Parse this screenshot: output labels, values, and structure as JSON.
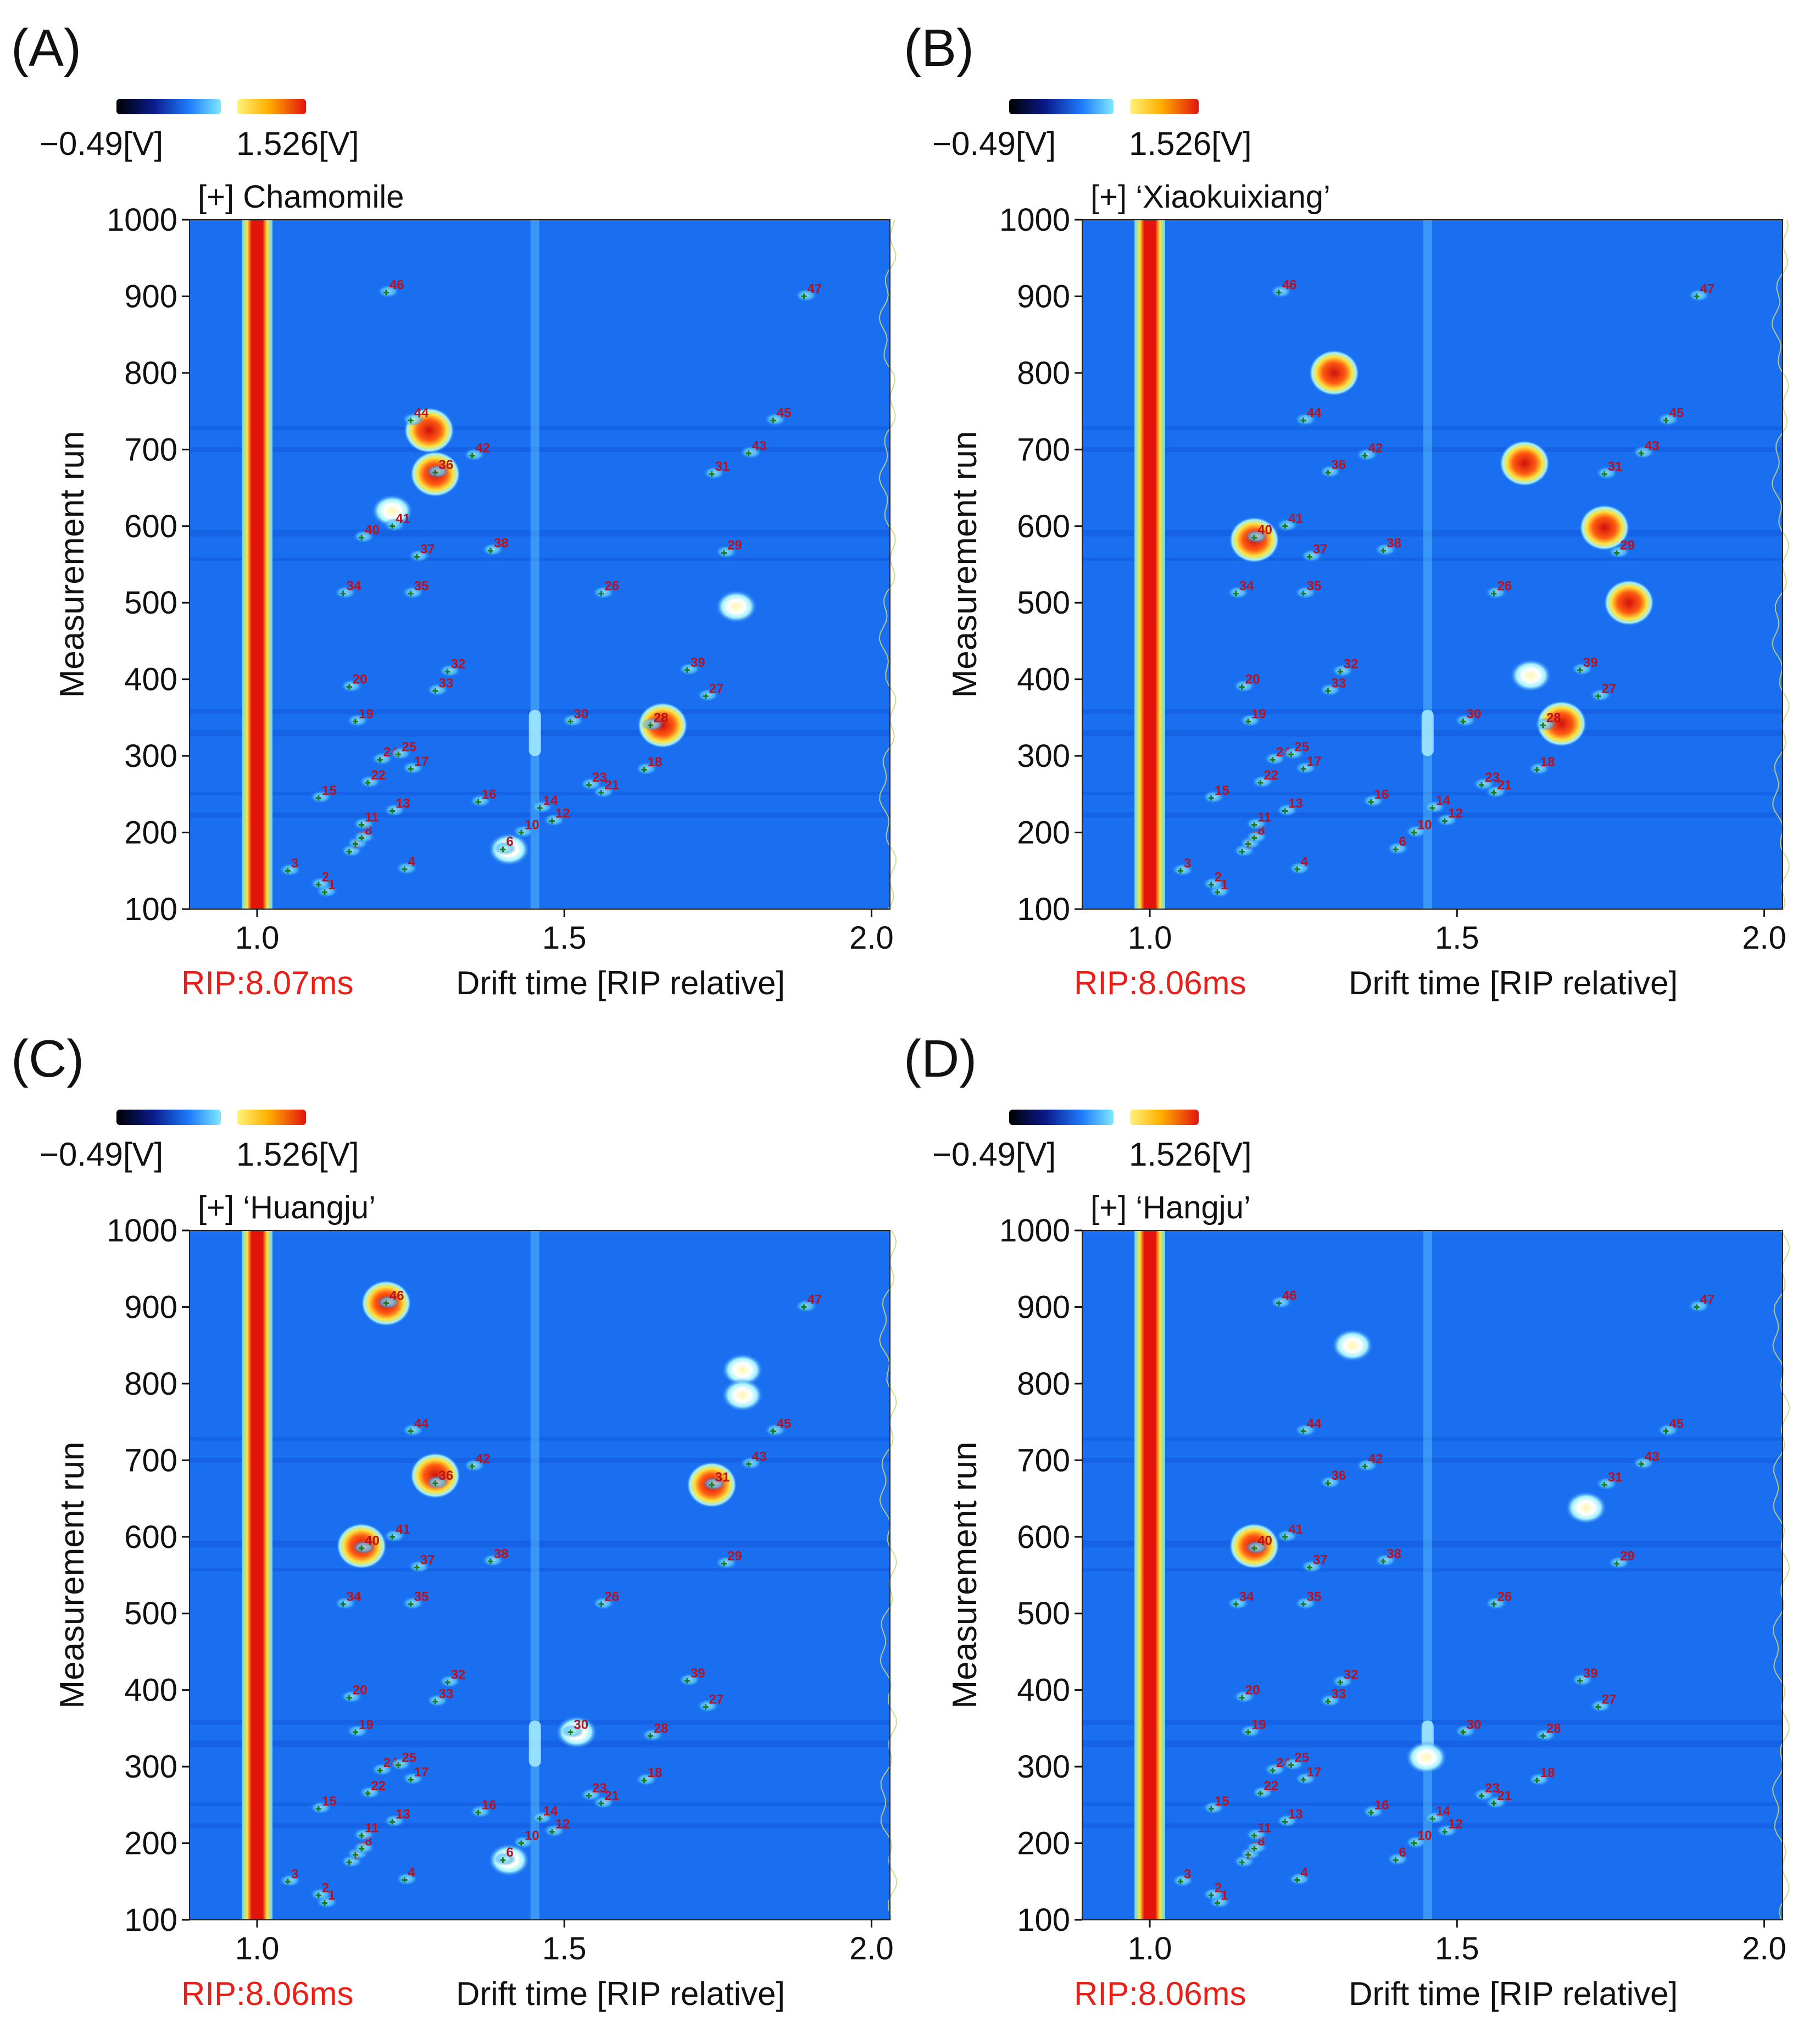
{
  "figure": {
    "colorbar": {
      "min_label": "−0.49[V]",
      "max_label": "1.526[V]"
    },
    "axis": {
      "ylabel": "Measurement run",
      "xlabel": "Drift time [RIP relative]",
      "xticks": [
        "1.0",
        "1.5",
        "2.0"
      ],
      "yticks": [
        "100",
        "200",
        "300",
        "400",
        "500",
        "600",
        "700",
        "800",
        "900",
        "1000"
      ]
    }
  },
  "colors": {
    "background": "#1a6ff0",
    "rip_line": "#e3140c",
    "rip_label": "#e8201a",
    "marker": "#1b7a1b",
    "peak_label": "#b8121e"
  },
  "chart_data": [
    {
      "type": "heatmap",
      "panel_label": "(A)",
      "title": "[+] Chamomile",
      "rip": "RIP:8.07ms",
      "xlabel": "Drift time [RIP relative]",
      "ylabel": "Measurement run",
      "xlim": [
        0.89,
        2.03
      ],
      "ylim": [
        100,
        1000
      ],
      "hotspots": [
        {
          "x": 1.28,
          "y": 725,
          "intensity": "high"
        },
        {
          "x": 1.29,
          "y": 668,
          "intensity": "high"
        },
        {
          "x": 1.22,
          "y": 620,
          "intensity": "medium"
        },
        {
          "x": 1.66,
          "y": 340,
          "intensity": "high"
        },
        {
          "x": 1.41,
          "y": 178,
          "intensity": "medium"
        },
        {
          "x": 1.78,
          "y": 495,
          "intensity": "medium"
        }
      ],
      "peaks": [
        {
          "id": "1",
          "x": 1.11,
          "y": 122
        },
        {
          "id": "2",
          "x": 1.1,
          "y": 132
        },
        {
          "id": "3",
          "x": 1.05,
          "y": 150
        },
        {
          "id": "4",
          "x": 1.24,
          "y": 152
        },
        {
          "id": "5",
          "x": 1.15,
          "y": 175
        },
        {
          "id": "6",
          "x": 1.4,
          "y": 178
        },
        {
          "id": "7",
          "x": 1.16,
          "y": 185
        },
        {
          "id": "8",
          "x": 1.17,
          "y": 193
        },
        {
          "id": "10",
          "x": 1.43,
          "y": 200
        },
        {
          "id": "11",
          "x": 1.17,
          "y": 210
        },
        {
          "id": "12",
          "x": 1.48,
          "y": 215
        },
        {
          "id": "13",
          "x": 1.22,
          "y": 228
        },
        {
          "id": "14",
          "x": 1.46,
          "y": 232
        },
        {
          "id": "15",
          "x": 1.1,
          "y": 245
        },
        {
          "id": "16",
          "x": 1.36,
          "y": 240
        },
        {
          "id": "18",
          "x": 1.63,
          "y": 282
        },
        {
          "id": "19",
          "x": 1.16,
          "y": 345
        },
        {
          "id": "20",
          "x": 1.15,
          "y": 390
        },
        {
          "id": "21",
          "x": 1.56,
          "y": 252
        },
        {
          "id": "22",
          "x": 1.18,
          "y": 265
        },
        {
          "id": "23",
          "x": 1.54,
          "y": 262
        },
        {
          "id": "24",
          "x": 1.2,
          "y": 295
        },
        {
          "id": "25",
          "x": 1.23,
          "y": 302
        },
        {
          "id": "17",
          "x": 1.25,
          "y": 283
        },
        {
          "id": "26",
          "x": 1.56,
          "y": 512
        },
        {
          "id": "27",
          "x": 1.73,
          "y": 378
        },
        {
          "id": "28",
          "x": 1.64,
          "y": 340
        },
        {
          "id": "30",
          "x": 1.51,
          "y": 345
        },
        {
          "id": "31",
          "x": 1.74,
          "y": 668
        },
        {
          "id": "32",
          "x": 1.31,
          "y": 410
        },
        {
          "id": "33",
          "x": 1.29,
          "y": 385
        },
        {
          "id": "34",
          "x": 1.14,
          "y": 512
        },
        {
          "id": "35",
          "x": 1.25,
          "y": 512
        },
        {
          "id": "36",
          "x": 1.29,
          "y": 670
        },
        {
          "id": "37",
          "x": 1.26,
          "y": 560
        },
        {
          "id": "38",
          "x": 1.38,
          "y": 568
        },
        {
          "id": "39",
          "x": 1.7,
          "y": 412
        },
        {
          "id": "40",
          "x": 1.17,
          "y": 585
        },
        {
          "id": "41",
          "x": 1.22,
          "y": 600
        },
        {
          "id": "42",
          "x": 1.35,
          "y": 692
        },
        {
          "id": "43",
          "x": 1.8,
          "y": 695
        },
        {
          "id": "44",
          "x": 1.25,
          "y": 738
        },
        {
          "id": "45",
          "x": 1.84,
          "y": 738
        },
        {
          "id": "46",
          "x": 1.21,
          "y": 905
        },
        {
          "id": "47",
          "x": 1.89,
          "y": 900
        },
        {
          "id": "29",
          "x": 1.76,
          "y": 565
        }
      ]
    },
    {
      "type": "heatmap",
      "panel_label": "(B)",
      "title": "[+] ‘Xiaokuixiang’",
      "rip": "RIP:8.06ms",
      "xlabel": "Drift time [RIP relative]",
      "ylabel": "Measurement run",
      "xlim": [
        0.89,
        2.03
      ],
      "ylim": [
        100,
        1000
      ],
      "hotspots": [
        {
          "x": 1.3,
          "y": 800,
          "intensity": "high"
        },
        {
          "x": 1.61,
          "y": 682,
          "intensity": "high"
        },
        {
          "x": 1.74,
          "y": 598,
          "intensity": "high"
        },
        {
          "x": 1.78,
          "y": 500,
          "intensity": "high"
        },
        {
          "x": 1.17,
          "y": 582,
          "intensity": "high"
        },
        {
          "x": 1.67,
          "y": 342,
          "intensity": "high"
        },
        {
          "x": 1.62,
          "y": 405,
          "intensity": "medium"
        }
      ],
      "peaks": [
        {
          "id": "1",
          "x": 1.11,
          "y": 122
        },
        {
          "id": "2",
          "x": 1.1,
          "y": 132
        },
        {
          "id": "3",
          "x": 1.05,
          "y": 150
        },
        {
          "id": "4",
          "x": 1.24,
          "y": 152
        },
        {
          "id": "5",
          "x": 1.15,
          "y": 175
        },
        {
          "id": "6",
          "x": 1.4,
          "y": 178
        },
        {
          "id": "7",
          "x": 1.16,
          "y": 185
        },
        {
          "id": "8",
          "x": 1.17,
          "y": 193
        },
        {
          "id": "10",
          "x": 1.43,
          "y": 200
        },
        {
          "id": "11",
          "x": 1.17,
          "y": 210
        },
        {
          "id": "12",
          "x": 1.48,
          "y": 215
        },
        {
          "id": "13",
          "x": 1.22,
          "y": 228
        },
        {
          "id": "14",
          "x": 1.46,
          "y": 232
        },
        {
          "id": "15",
          "x": 1.1,
          "y": 245
        },
        {
          "id": "16",
          "x": 1.36,
          "y": 240
        },
        {
          "id": "18",
          "x": 1.63,
          "y": 282
        },
        {
          "id": "19",
          "x": 1.16,
          "y": 345
        },
        {
          "id": "20",
          "x": 1.15,
          "y": 390
        },
        {
          "id": "21",
          "x": 1.56,
          "y": 252
        },
        {
          "id": "22",
          "x": 1.18,
          "y": 265
        },
        {
          "id": "23",
          "x": 1.54,
          "y": 262
        },
        {
          "id": "24",
          "x": 1.2,
          "y": 295
        },
        {
          "id": "25",
          "x": 1.23,
          "y": 302
        },
        {
          "id": "17",
          "x": 1.25,
          "y": 283
        },
        {
          "id": "26",
          "x": 1.56,
          "y": 512
        },
        {
          "id": "27",
          "x": 1.73,
          "y": 378
        },
        {
          "id": "28",
          "x": 1.64,
          "y": 340
        },
        {
          "id": "30",
          "x": 1.51,
          "y": 345
        },
        {
          "id": "31",
          "x": 1.74,
          "y": 668
        },
        {
          "id": "32",
          "x": 1.31,
          "y": 410
        },
        {
          "id": "33",
          "x": 1.29,
          "y": 385
        },
        {
          "id": "34",
          "x": 1.14,
          "y": 512
        },
        {
          "id": "35",
          "x": 1.25,
          "y": 512
        },
        {
          "id": "36",
          "x": 1.29,
          "y": 670
        },
        {
          "id": "37",
          "x": 1.26,
          "y": 560
        },
        {
          "id": "38",
          "x": 1.38,
          "y": 568
        },
        {
          "id": "39",
          "x": 1.7,
          "y": 412
        },
        {
          "id": "40",
          "x": 1.17,
          "y": 585
        },
        {
          "id": "41",
          "x": 1.22,
          "y": 600
        },
        {
          "id": "42",
          "x": 1.35,
          "y": 692
        },
        {
          "id": "43",
          "x": 1.8,
          "y": 695
        },
        {
          "id": "44",
          "x": 1.25,
          "y": 738
        },
        {
          "id": "45",
          "x": 1.84,
          "y": 738
        },
        {
          "id": "46",
          "x": 1.21,
          "y": 905
        },
        {
          "id": "47",
          "x": 1.89,
          "y": 900
        },
        {
          "id": "29",
          "x": 1.76,
          "y": 565
        }
      ]
    },
    {
      "type": "heatmap",
      "panel_label": "(C)",
      "title": "[+] ‘Huangju’",
      "rip": "RIP:8.06ms",
      "xlabel": "Drift time [RIP relative]",
      "ylabel": "Measurement run",
      "xlim": [
        0.89,
        2.03
      ],
      "ylim": [
        100,
        1000
      ],
      "hotspots": [
        {
          "x": 1.21,
          "y": 905,
          "intensity": "high"
        },
        {
          "x": 1.79,
          "y": 818,
          "intensity": "medium"
        },
        {
          "x": 1.79,
          "y": 785,
          "intensity": "medium"
        },
        {
          "x": 1.29,
          "y": 680,
          "intensity": "high"
        },
        {
          "x": 1.74,
          "y": 668,
          "intensity": "high"
        },
        {
          "x": 1.17,
          "y": 588,
          "intensity": "high"
        },
        {
          "x": 1.52,
          "y": 345,
          "intensity": "medium"
        },
        {
          "x": 1.41,
          "y": 178,
          "intensity": "medium"
        }
      ],
      "peaks": [
        {
          "id": "1",
          "x": 1.11,
          "y": 122
        },
        {
          "id": "2",
          "x": 1.1,
          "y": 132
        },
        {
          "id": "3",
          "x": 1.05,
          "y": 150
        },
        {
          "id": "4",
          "x": 1.24,
          "y": 152
        },
        {
          "id": "5",
          "x": 1.15,
          "y": 175
        },
        {
          "id": "6",
          "x": 1.4,
          "y": 178
        },
        {
          "id": "7",
          "x": 1.16,
          "y": 185
        },
        {
          "id": "8",
          "x": 1.17,
          "y": 193
        },
        {
          "id": "10",
          "x": 1.43,
          "y": 200
        },
        {
          "id": "11",
          "x": 1.17,
          "y": 210
        },
        {
          "id": "12",
          "x": 1.48,
          "y": 215
        },
        {
          "id": "13",
          "x": 1.22,
          "y": 228
        },
        {
          "id": "14",
          "x": 1.46,
          "y": 232
        },
        {
          "id": "15",
          "x": 1.1,
          "y": 245
        },
        {
          "id": "16",
          "x": 1.36,
          "y": 240
        },
        {
          "id": "18",
          "x": 1.63,
          "y": 282
        },
        {
          "id": "19",
          "x": 1.16,
          "y": 345
        },
        {
          "id": "20",
          "x": 1.15,
          "y": 390
        },
        {
          "id": "21",
          "x": 1.56,
          "y": 252
        },
        {
          "id": "22",
          "x": 1.18,
          "y": 265
        },
        {
          "id": "23",
          "x": 1.54,
          "y": 262
        },
        {
          "id": "24",
          "x": 1.2,
          "y": 295
        },
        {
          "id": "25",
          "x": 1.23,
          "y": 302
        },
        {
          "id": "17",
          "x": 1.25,
          "y": 283
        },
        {
          "id": "26",
          "x": 1.56,
          "y": 512
        },
        {
          "id": "27",
          "x": 1.73,
          "y": 378
        },
        {
          "id": "28",
          "x": 1.64,
          "y": 340
        },
        {
          "id": "30",
          "x": 1.51,
          "y": 345
        },
        {
          "id": "31",
          "x": 1.74,
          "y": 668
        },
        {
          "id": "32",
          "x": 1.31,
          "y": 410
        },
        {
          "id": "33",
          "x": 1.29,
          "y": 385
        },
        {
          "id": "34",
          "x": 1.14,
          "y": 512
        },
        {
          "id": "35",
          "x": 1.25,
          "y": 512
        },
        {
          "id": "36",
          "x": 1.29,
          "y": 670
        },
        {
          "id": "37",
          "x": 1.26,
          "y": 560
        },
        {
          "id": "38",
          "x": 1.38,
          "y": 568
        },
        {
          "id": "39",
          "x": 1.7,
          "y": 412
        },
        {
          "id": "40",
          "x": 1.17,
          "y": 585
        },
        {
          "id": "41",
          "x": 1.22,
          "y": 600
        },
        {
          "id": "42",
          "x": 1.35,
          "y": 692
        },
        {
          "id": "43",
          "x": 1.8,
          "y": 695
        },
        {
          "id": "44",
          "x": 1.25,
          "y": 738
        },
        {
          "id": "45",
          "x": 1.84,
          "y": 738
        },
        {
          "id": "46",
          "x": 1.21,
          "y": 905
        },
        {
          "id": "47",
          "x": 1.89,
          "y": 900
        },
        {
          "id": "29",
          "x": 1.76,
          "y": 565
        }
      ]
    },
    {
      "type": "heatmap",
      "panel_label": "(D)",
      "title": "[+] ‘Hangju’",
      "rip": "RIP:8.06ms",
      "xlabel": "Drift time [RIP relative]",
      "ylabel": "Measurement run",
      "xlim": [
        0.89,
        2.03
      ],
      "ylim": [
        100,
        1000
      ],
      "hotspots": [
        {
          "x": 1.17,
          "y": 588,
          "intensity": "high"
        },
        {
          "x": 1.33,
          "y": 850,
          "intensity": "medium"
        },
        {
          "x": 1.45,
          "y": 312,
          "intensity": "medium"
        },
        {
          "x": 1.71,
          "y": 638,
          "intensity": "medium"
        }
      ],
      "peaks": [
        {
          "id": "1",
          "x": 1.11,
          "y": 122
        },
        {
          "id": "2",
          "x": 1.1,
          "y": 132
        },
        {
          "id": "3",
          "x": 1.05,
          "y": 150
        },
        {
          "id": "4",
          "x": 1.24,
          "y": 152
        },
        {
          "id": "5",
          "x": 1.15,
          "y": 175
        },
        {
          "id": "6",
          "x": 1.4,
          "y": 178
        },
        {
          "id": "7",
          "x": 1.16,
          "y": 185
        },
        {
          "id": "8",
          "x": 1.17,
          "y": 193
        },
        {
          "id": "10",
          "x": 1.43,
          "y": 200
        },
        {
          "id": "11",
          "x": 1.17,
          "y": 210
        },
        {
          "id": "12",
          "x": 1.48,
          "y": 215
        },
        {
          "id": "13",
          "x": 1.22,
          "y": 228
        },
        {
          "id": "14",
          "x": 1.46,
          "y": 232
        },
        {
          "id": "15",
          "x": 1.1,
          "y": 245
        },
        {
          "id": "16",
          "x": 1.36,
          "y": 240
        },
        {
          "id": "18",
          "x": 1.63,
          "y": 282
        },
        {
          "id": "19",
          "x": 1.16,
          "y": 345
        },
        {
          "id": "20",
          "x": 1.15,
          "y": 390
        },
        {
          "id": "21",
          "x": 1.56,
          "y": 252
        },
        {
          "id": "22",
          "x": 1.18,
          "y": 265
        },
        {
          "id": "23",
          "x": 1.54,
          "y": 262
        },
        {
          "id": "24",
          "x": 1.2,
          "y": 295
        },
        {
          "id": "25",
          "x": 1.23,
          "y": 302
        },
        {
          "id": "17",
          "x": 1.25,
          "y": 283
        },
        {
          "id": "26",
          "x": 1.56,
          "y": 512
        },
        {
          "id": "27",
          "x": 1.73,
          "y": 378
        },
        {
          "id": "28",
          "x": 1.64,
          "y": 340
        },
        {
          "id": "30",
          "x": 1.51,
          "y": 345
        },
        {
          "id": "31",
          "x": 1.74,
          "y": 668
        },
        {
          "id": "32",
          "x": 1.31,
          "y": 410
        },
        {
          "id": "33",
          "x": 1.29,
          "y": 385
        },
        {
          "id": "34",
          "x": 1.14,
          "y": 512
        },
        {
          "id": "35",
          "x": 1.25,
          "y": 512
        },
        {
          "id": "36",
          "x": 1.29,
          "y": 670
        },
        {
          "id": "37",
          "x": 1.26,
          "y": 560
        },
        {
          "id": "38",
          "x": 1.38,
          "y": 568
        },
        {
          "id": "39",
          "x": 1.7,
          "y": 412
        },
        {
          "id": "40",
          "x": 1.17,
          "y": 585
        },
        {
          "id": "41",
          "x": 1.22,
          "y": 600
        },
        {
          "id": "42",
          "x": 1.35,
          "y": 692
        },
        {
          "id": "43",
          "x": 1.8,
          "y": 695
        },
        {
          "id": "44",
          "x": 1.25,
          "y": 738
        },
        {
          "id": "45",
          "x": 1.84,
          "y": 738
        },
        {
          "id": "46",
          "x": 1.21,
          "y": 905
        },
        {
          "id": "47",
          "x": 1.89,
          "y": 900
        },
        {
          "id": "29",
          "x": 1.76,
          "y": 565
        }
      ]
    }
  ]
}
